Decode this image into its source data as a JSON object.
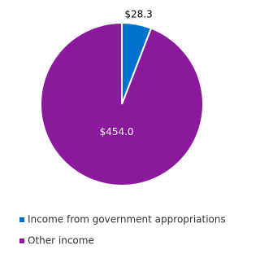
{
  "chart_data": {
    "type": "pie",
    "categories": [
      "Income from government appropriations",
      "Other income"
    ],
    "values": [
      28.3,
      454.0
    ],
    "value_labels": [
      "$28.3",
      "$454.0"
    ],
    "colors": [
      "#0072ce",
      "#8a1a9b"
    ]
  }
}
